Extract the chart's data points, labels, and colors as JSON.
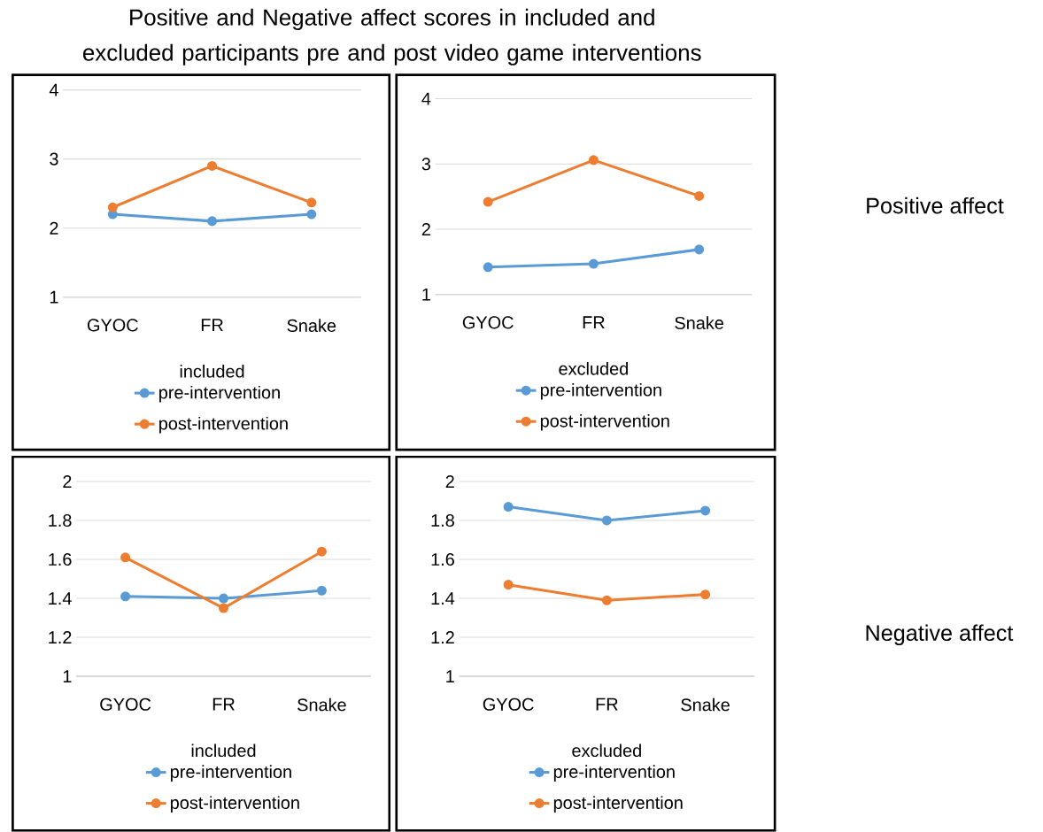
{
  "chart_data": [
    {
      "type": "line",
      "title": "Positive and Negative affect scores in included and excluded participants pre and post video game interventions",
      "xlabel": "included",
      "categories": [
        "GYOC",
        "FR",
        "Snake"
      ],
      "ylim": [
        1,
        4
      ],
      "yticks": [
        1,
        2,
        3,
        4
      ],
      "grid": "y",
      "legend": "bottom",
      "marker": "circle",
      "series": [
        {
          "name": "pre-intervention",
          "color": "#5b9bd5",
          "values": [
            2.2,
            2.1,
            2.2
          ]
        },
        {
          "name": "post-intervention",
          "color": "#ed7d31",
          "values": [
            2.3,
            2.9,
            2.37
          ]
        }
      ]
    },
    {
      "type": "line",
      "xlabel": "excluded",
      "categories": [
        "GYOC",
        "FR",
        "Snake"
      ],
      "ylim": [
        1,
        4
      ],
      "yticks": [
        1,
        2,
        3,
        4
      ],
      "grid": "y",
      "legend": "bottom",
      "marker": "circle",
      "annotations": [
        "Positive affect"
      ],
      "series": [
        {
          "name": "pre-intervention",
          "color": "#5b9bd5",
          "values": [
            1.42,
            1.47,
            1.69
          ]
        },
        {
          "name": "post-intervention",
          "color": "#ed7d31",
          "values": [
            2.42,
            3.06,
            2.51
          ]
        }
      ]
    },
    {
      "type": "line",
      "xlabel": "included",
      "categories": [
        "GYOC",
        "FR",
        "Snake"
      ],
      "ylim": [
        1,
        2
      ],
      "yticks": [
        1,
        1.2,
        1.4,
        1.6,
        1.8,
        2
      ],
      "grid": "y",
      "legend": "bottom",
      "marker": "circle",
      "series": [
        {
          "name": "pre-intervention",
          "color": "#5b9bd5",
          "values": [
            1.41,
            1.4,
            1.44
          ]
        },
        {
          "name": "post-intervention",
          "color": "#ed7d31",
          "values": [
            1.61,
            1.35,
            1.64
          ]
        }
      ]
    },
    {
      "type": "line",
      "xlabel": "excluded",
      "categories": [
        "GYOC",
        "FR",
        "Snake"
      ],
      "ylim": [
        1,
        2
      ],
      "yticks": [
        1,
        1.2,
        1.4,
        1.6,
        1.8,
        2
      ],
      "grid": "y",
      "legend": "bottom",
      "marker": "circle",
      "annotations": [
        "Negative affect"
      ],
      "series": [
        {
          "name": "pre-intervention",
          "color": "#5b9bd5",
          "values": [
            1.87,
            1.8,
            1.85
          ]
        },
        {
          "name": "post-intervention",
          "color": "#ed7d31",
          "values": [
            1.47,
            1.39,
            1.42
          ]
        }
      ]
    }
  ]
}
